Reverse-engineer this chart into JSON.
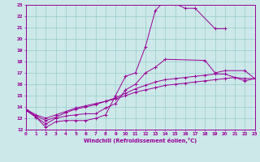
{
  "xlabel": "Windchill (Refroidissement éolien,°C)",
  "bg_color": "#cce8e8",
  "line_color": "#990099",
  "grid_color": "#99cccc",
  "xmin": 0,
  "xmax": 23,
  "ymin": 12,
  "ymax": 23,
  "line1_x": [
    0,
    1,
    2,
    3,
    4,
    5,
    6,
    7,
    8,
    9,
    10,
    11,
    12,
    13,
    14,
    15,
    16,
    17,
    19,
    20
  ],
  "line1_y": [
    13.7,
    13.1,
    12.2,
    12.7,
    12.8,
    12.8,
    12.8,
    13.0,
    13.3,
    15.0,
    16.7,
    17.0,
    19.3,
    22.5,
    23.4,
    23.1,
    22.7,
    22.7,
    20.9,
    20.9
  ],
  "line2_x": [
    0,
    1,
    2,
    3,
    4,
    5,
    6,
    7,
    8,
    9,
    10,
    11,
    12,
    13,
    14,
    18,
    19,
    20,
    22,
    23
  ],
  "line2_y": [
    13.7,
    13.1,
    12.5,
    13.0,
    13.2,
    13.3,
    13.4,
    13.4,
    13.9,
    14.3,
    15.5,
    16.0,
    17.0,
    17.5,
    18.2,
    18.1,
    17.0,
    17.2,
    17.2,
    16.5
  ],
  "line3_x": [
    0,
    1,
    2,
    3,
    4,
    5,
    6,
    7,
    8,
    9,
    10,
    11,
    12,
    13,
    14,
    15,
    16,
    17,
    18,
    19,
    20,
    22,
    23
  ],
  "line3_y": [
    13.8,
    13.2,
    12.8,
    13.1,
    13.5,
    13.8,
    14.0,
    14.2,
    14.5,
    14.8,
    15.2,
    15.6,
    15.9,
    16.2,
    16.4,
    16.5,
    16.6,
    16.7,
    16.8,
    16.9,
    16.9,
    16.3,
    16.5
  ],
  "line4_x": [
    0,
    1,
    2,
    3,
    4,
    5,
    6,
    7,
    8,
    9,
    10,
    11,
    12,
    13,
    14,
    15,
    16,
    17,
    18,
    19,
    20,
    21,
    22,
    23
  ],
  "line4_y": [
    13.8,
    13.3,
    13.0,
    13.3,
    13.6,
    13.9,
    14.1,
    14.3,
    14.5,
    14.7,
    15.0,
    15.3,
    15.5,
    15.7,
    15.9,
    16.0,
    16.1,
    16.2,
    16.3,
    16.4,
    16.5,
    16.6,
    16.5,
    16.5
  ]
}
